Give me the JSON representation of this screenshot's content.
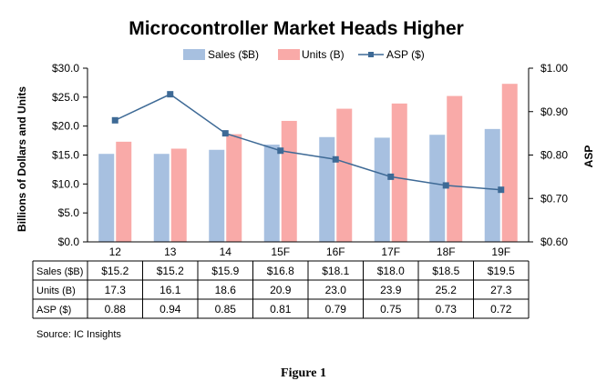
{
  "chart_data": {
    "type": "bar",
    "title": "Microcontroller Market Heads Higher",
    "categories": [
      "12",
      "13",
      "14",
      "15F",
      "16F",
      "17F",
      "18F",
      "19F"
    ],
    "series": [
      {
        "name": "Sales ($B)",
        "type": "bar",
        "axis": "left",
        "color": "#A7C0E0",
        "values": [
          15.2,
          15.2,
          15.9,
          16.8,
          18.1,
          18.0,
          18.5,
          19.5
        ],
        "table_labels": [
          "$15.2",
          "$15.2",
          "$15.9",
          "$16.8",
          "$18.1",
          "$18.0",
          "$18.5",
          "$19.5"
        ]
      },
      {
        "name": "Units (B)",
        "type": "bar",
        "axis": "left",
        "color": "#F9AAA8",
        "values": [
          17.3,
          16.1,
          18.6,
          20.9,
          23.0,
          23.9,
          25.2,
          27.3
        ],
        "table_labels": [
          "17.3",
          "16.1",
          "18.6",
          "20.9",
          "23.0",
          "23.9",
          "25.2",
          "27.3"
        ]
      },
      {
        "name": "ASP ($)",
        "type": "line",
        "axis": "right",
        "color": "#3E6A96",
        "values": [
          0.88,
          0.94,
          0.85,
          0.81,
          0.79,
          0.75,
          0.73,
          0.72
        ],
        "table_labels": [
          "0.88",
          "0.94",
          "0.85",
          "0.81",
          "0.79",
          "0.75",
          "0.73",
          "0.72"
        ]
      }
    ],
    "ylabel": "Billions of Dollars and Units",
    "y2label": "ASP",
    "ylim": [
      0,
      30
    ],
    "y2lim": [
      0.6,
      1.0
    ],
    "yticks": [
      "$0.0",
      "$5.0",
      "$10.0",
      "$15.0",
      "$20.0",
      "$25.0",
      "$30.0"
    ],
    "y2ticks": [
      "$0.60",
      "$0.70",
      "$0.80",
      "$0.90",
      "$1.00"
    ],
    "legend_position": "top",
    "grid": false,
    "source": "Source:  IC Insights",
    "caption": "Figure 1"
  }
}
